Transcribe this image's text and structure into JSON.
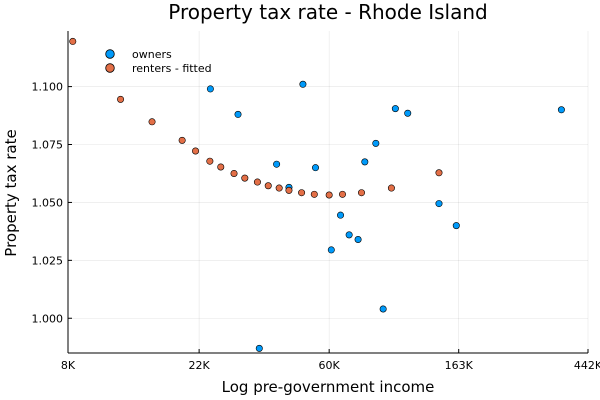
{
  "chart_data": {
    "type": "scatter",
    "title": "Property tax rate - Rhode Island",
    "xlabel": "Log pre-government income",
    "ylabel": "Property tax rate",
    "x_scale": "log",
    "x_ticks": [
      8000,
      22000,
      60000,
      163000,
      442000
    ],
    "x_tick_labels": [
      "8K",
      "22K",
      "60K",
      "163K",
      "442K"
    ],
    "xlim": [
      8000,
      442000
    ],
    "y_ticks": [
      1.0,
      1.025,
      1.05,
      1.075,
      1.1
    ],
    "y_tick_labels": [
      "1.000",
      "1.025",
      "1.050",
      "1.075",
      "1.100"
    ],
    "ylim": [
      0.985,
      1.124
    ],
    "grid": true,
    "legend_position": "top-left",
    "series": [
      {
        "name": "owners",
        "color": "#009AFA",
        "points": [
          {
            "x": 24000,
            "y": 1.099
          },
          {
            "x": 29700,
            "y": 1.088
          },
          {
            "x": 35000,
            "y": 0.987
          },
          {
            "x": 40000,
            "y": 1.0665
          },
          {
            "x": 44000,
            "y": 1.0565
          },
          {
            "x": 49000,
            "y": 1.101
          },
          {
            "x": 54000,
            "y": 1.065
          },
          {
            "x": 61000,
            "y": 1.0295
          },
          {
            "x": 65500,
            "y": 1.0445
          },
          {
            "x": 70000,
            "y": 1.036
          },
          {
            "x": 75000,
            "y": 1.034
          },
          {
            "x": 79000,
            "y": 1.0675
          },
          {
            "x": 86000,
            "y": 1.0755
          },
          {
            "x": 91000,
            "y": 1.004
          },
          {
            "x": 100000,
            "y": 1.0905
          },
          {
            "x": 110000,
            "y": 1.0885
          },
          {
            "x": 140000,
            "y": 1.0495
          },
          {
            "x": 160000,
            "y": 1.04
          },
          {
            "x": 360000,
            "y": 1.09
          }
        ]
      },
      {
        "name": "renters - fitted",
        "color": "#E36F47",
        "points": [
          {
            "x": 8300,
            "y": 1.1195
          },
          {
            "x": 12000,
            "y": 1.0945
          },
          {
            "x": 15300,
            "y": 1.0848
          },
          {
            "x": 19300,
            "y": 1.0768
          },
          {
            "x": 21400,
            "y": 1.0722
          },
          {
            "x": 23900,
            "y": 1.0678
          },
          {
            "x": 26000,
            "y": 1.0653
          },
          {
            "x": 28800,
            "y": 1.0625
          },
          {
            "x": 31300,
            "y": 1.0605
          },
          {
            "x": 34500,
            "y": 1.0588
          },
          {
            "x": 37500,
            "y": 1.0572
          },
          {
            "x": 40800,
            "y": 1.0562
          },
          {
            "x": 44000,
            "y": 1.0552
          },
          {
            "x": 48500,
            "y": 1.0542
          },
          {
            "x": 53500,
            "y": 1.0535
          },
          {
            "x": 60000,
            "y": 1.0532
          },
          {
            "x": 66500,
            "y": 1.0535
          },
          {
            "x": 77000,
            "y": 1.0542
          },
          {
            "x": 97000,
            "y": 1.0562
          },
          {
            "x": 140000,
            "y": 1.0628
          }
        ]
      }
    ]
  }
}
